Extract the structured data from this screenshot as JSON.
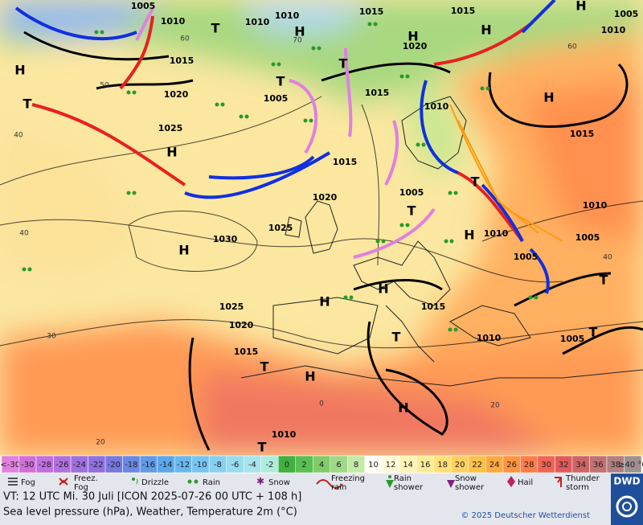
{
  "map": {
    "centers": [
      "H",
      "H",
      "H",
      "H",
      "H",
      "H",
      "H",
      "H",
      "H",
      "H",
      "H",
      "H",
      "H",
      "T",
      "T",
      "T",
      "T",
      "T",
      "T",
      "T",
      "T",
      "T",
      "T",
      "T"
    ],
    "isobar_labels": [
      "1005",
      "1010",
      "1010",
      "1010",
      "1015",
      "1015",
      "1005",
      "1010",
      "1020",
      "1015",
      "1020",
      "1005",
      "1015",
      "1010",
      "1025",
      "1015",
      "1015",
      "1020",
      "1005",
      "1025",
      "1030",
      "1010",
      "1005",
      "1010",
      "1005",
      "1025",
      "1020",
      "1015",
      "1015",
      "1010",
      "1005",
      "1010"
    ],
    "grid_labels": [
      "60",
      "50",
      "40",
      "40",
      "30",
      "20",
      "60",
      "40",
      "0",
      "20",
      "70"
    ]
  },
  "scale": {
    "labels": [
      "<-30",
      "-30",
      "-28",
      "-26",
      "-24",
      "-22",
      "-20",
      "-18",
      "-16",
      "-14",
      "-12",
      "-10",
      "-8",
      "-6",
      "-4",
      "-2",
      "0",
      "2",
      "4",
      "6",
      "8",
      "10",
      "12",
      "14",
      "16",
      "18",
      "20",
      "22",
      "24",
      "26",
      "28",
      "30",
      "32",
      "34",
      "36",
      "38",
      "≥40 °C"
    ],
    "colors": [
      "#e080e0",
      "#d070d8",
      "#c070e0",
      "#b070e0",
      "#a070e0",
      "#9070e0",
      "#7878e0",
      "#6a88e4",
      "#609ae8",
      "#5aa8ec",
      "#68b8f0",
      "#78c4f0",
      "#88d0f0",
      "#98dcf0",
      "#a8e4ec",
      "#b0ecdc",
      "#40b040",
      "#58c050",
      "#80cc68",
      "#a0d888",
      "#c4eaa8",
      "#fffff4",
      "#fffad8",
      "#fff4b8",
      "#ffec98",
      "#ffe078",
      "#ffd060",
      "#ffc048",
      "#ffa840",
      "#ff9440",
      "#ff7c48",
      "#f06454",
      "#e05a5a",
      "#d06464",
      "#c07272",
      "#b08080",
      "#a09090"
    ]
  },
  "legend": [
    "Fog",
    "Freez. Fog",
    "Drizzle",
    "Rain",
    "Snow",
    "Freezing rain",
    "Rain shower",
    "Snow shower",
    "Hail",
    "Thunder storm"
  ],
  "footer": {
    "valid_time": "VT: 12 UTC Mi.   30 Juli [ICON 2025-07-26   00 UTC + 108 h]",
    "description": "Sea level pressure (hPa), Weather, Temperature 2m (°C)",
    "copyright": "© 2025 Deutscher Wetterdienst",
    "logo": "DWD"
  }
}
